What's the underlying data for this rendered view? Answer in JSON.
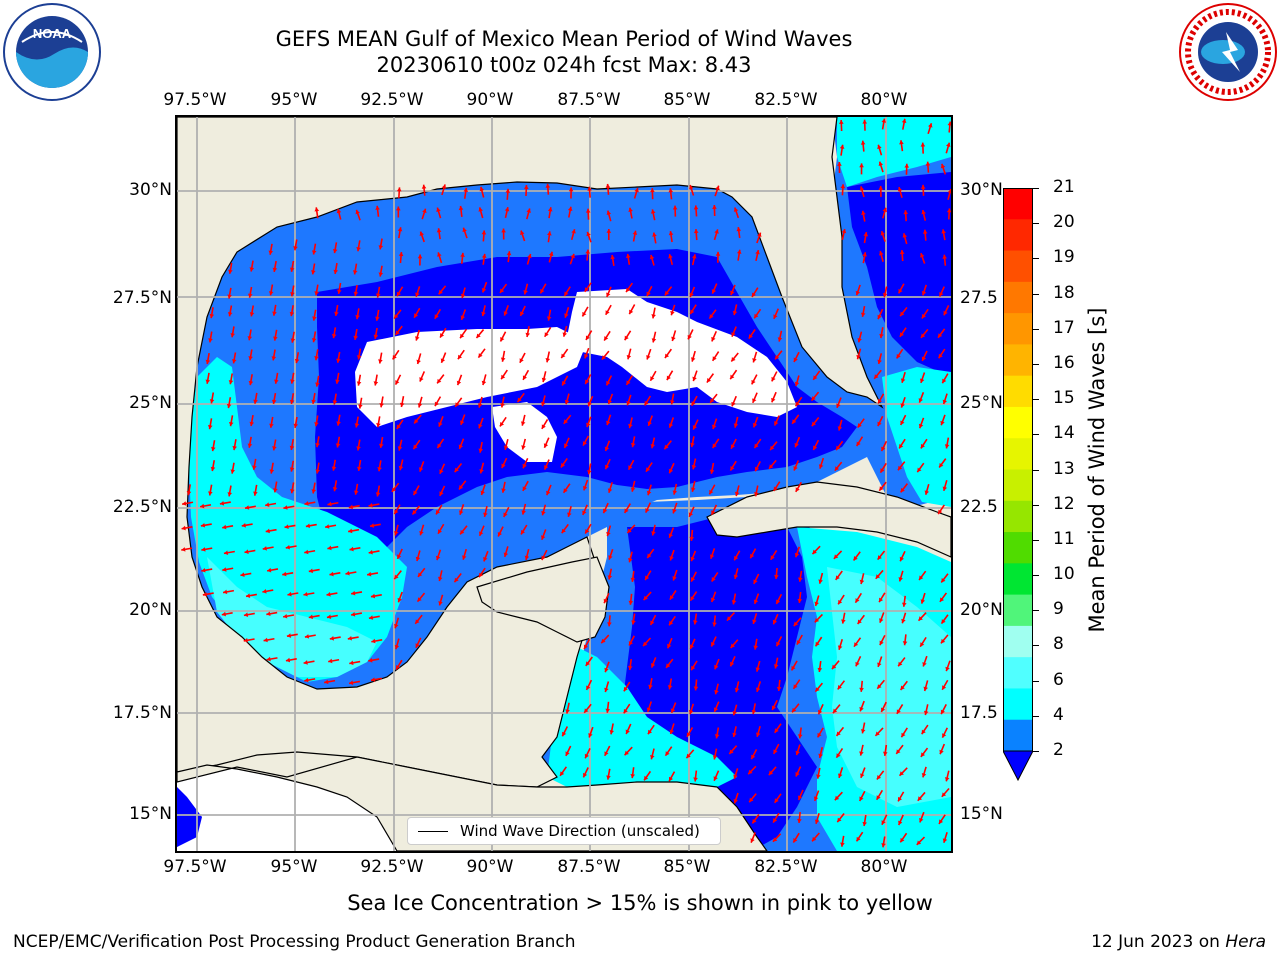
{
  "title_line1": "GEFS MEAN Gulf of Mexico Mean Period of Wind Waves",
  "title_line2": "20230610 t00z 024h fcst   Max: 8.43",
  "lon_labels": [
    "97.5°W",
    "95°W",
    "92.5°W",
    "90°W",
    "87.5°W",
    "85°W",
    "82.5°W",
    "80°W"
  ],
  "lat_labels_left": [
    "30°N",
    "27.5°N",
    "25°N",
    "22.5°N",
    "20°N",
    "17.5°N",
    "15°N"
  ],
  "lat_labels_right": [
    "30°N",
    "27.5",
    "25°N",
    "22.5",
    "20°N",
    "17.5",
    "15°N"
  ],
  "legend_label": "Wind Wave Direction (unscaled)",
  "colorbar": {
    "label": "Mean Period of Wind Waves [s]",
    "ticks": [
      "21",
      "20",
      "19",
      "18",
      "17",
      "16",
      "15",
      "14",
      "13",
      "12",
      "11",
      "10",
      "9",
      "8",
      "6",
      "4",
      "2"
    ],
    "colors": [
      "#ff0000",
      "#ff2800",
      "#ff5000",
      "#ff7800",
      "#ff9600",
      "#ffb400",
      "#ffdc00",
      "#ffff00",
      "#e6f500",
      "#c8f000",
      "#96e600",
      "#50dc00",
      "#00e632",
      "#50f57a",
      "#a0fff0",
      "#50ffff",
      "#00ffff",
      "#0a82ff"
    ],
    "extend_color": "#0000ff"
  },
  "map_colors": {
    "land": "#efedde",
    "water_white": "#ffffff",
    "level_2": "#0000ff",
    "level_4": "#1e78ff",
    "level_6": "#00ffff",
    "level_8": "#46ffff",
    "arrow": "#ff0000",
    "grid": "#b0b0b0"
  },
  "ice_note": "Sea Ice Concentration > 15% is shown in pink to yellow",
  "footer_left": "NCEP/EMC/Verification Post Processing Product Generation Branch",
  "footer_right_date": "12 Jun 2023 on",
  "footer_right_machine": "Hera",
  "logos": {
    "left": "noaa-logo",
    "right": "nws-logo",
    "left_text": "NOAA"
  }
}
